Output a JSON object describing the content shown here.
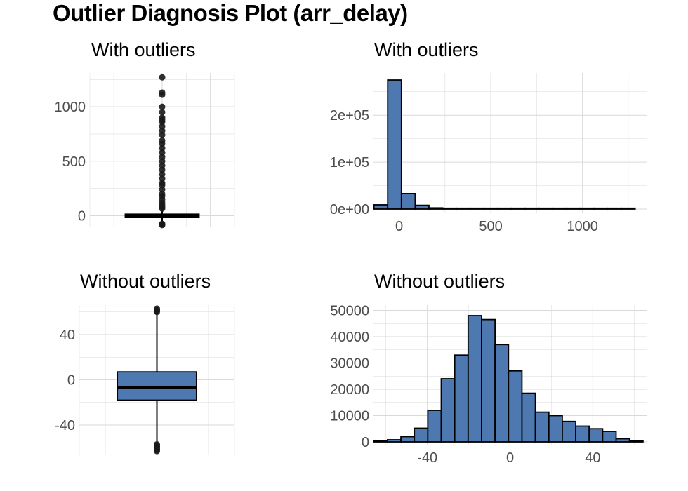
{
  "title": "Outlier Diagnosis Plot (arr_delay)",
  "colors": {
    "fill": "#4e79b0",
    "stroke": "#000000",
    "grid": "#d9d9d9",
    "text": "#4d4d4d"
  },
  "chart_data": [
    {
      "type": "box",
      "title": "With outliers",
      "yticks": [
        0,
        500,
        1000
      ],
      "ylim": [
        -100,
        1310
      ],
      "box": {
        "q1": -17,
        "median": -5,
        "q3": 14,
        "whisker_low": -86,
        "whisker_high": 60
      },
      "outliers": [
        -86,
        -80,
        -75,
        65,
        80,
        100,
        120,
        150,
        180,
        200,
        240,
        280,
        300,
        340,
        380,
        420,
        460,
        500,
        540,
        580,
        620,
        660,
        690,
        740,
        780,
        820,
        860,
        880,
        900,
        950,
        1000,
        1110,
        1130,
        1270
      ]
    },
    {
      "type": "bar",
      "title": "With outliers",
      "xticks": [
        0,
        500,
        1000
      ],
      "yticks": [
        0,
        100000,
        200000
      ],
      "ytick_labels": [
        "0e+00",
        "1e+05",
        "2e+05"
      ],
      "xlim": [
        -140,
        1350
      ],
      "ylim": [
        -3000,
        290000
      ],
      "bin_width": 75,
      "bin_centers": [
        -100,
        -25,
        50,
        125,
        200,
        275,
        350,
        425,
        500,
        575,
        650,
        725,
        800,
        875,
        950,
        1025,
        1100,
        1175,
        1250
      ],
      "values": [
        9000,
        275000,
        33000,
        8000,
        2500,
        900,
        400,
        200,
        120,
        80,
        50,
        30,
        20,
        15,
        10,
        8,
        5,
        3,
        2
      ]
    },
    {
      "type": "box",
      "title": "Without outliers",
      "yticks": [
        -40,
        0,
        40
      ],
      "ylim": [
        -66,
        66
      ],
      "box": {
        "q1": -18,
        "median": -7,
        "q3": 7,
        "whisker_low": -56,
        "whisker_high": 59
      },
      "outliers": [
        -63,
        -62,
        -61,
        -60,
        -59,
        -58,
        -57,
        60,
        61,
        62,
        63
      ]
    },
    {
      "type": "bar",
      "title": "Without outliers",
      "xticks": [
        -40,
        0,
        40
      ],
      "yticks": [
        0,
        10000,
        20000,
        30000,
        40000,
        50000
      ],
      "xlim": [
        -66,
        66
      ],
      "ylim": [
        0,
        52000
      ],
      "bin_width": 6.5,
      "bin_centers": [
        -62.5,
        -56,
        -49.5,
        -43,
        -36.5,
        -30,
        -23.5,
        -17,
        -10.5,
        -4,
        2.5,
        9,
        15.5,
        22,
        28.5,
        35,
        41.5,
        48,
        54.5,
        61
      ],
      "values": [
        300,
        800,
        2000,
        5200,
        12000,
        24000,
        33000,
        48000,
        46500,
        37000,
        27000,
        18500,
        11300,
        10000,
        7800,
        6000,
        5000,
        4000,
        1200,
        0
      ]
    }
  ]
}
